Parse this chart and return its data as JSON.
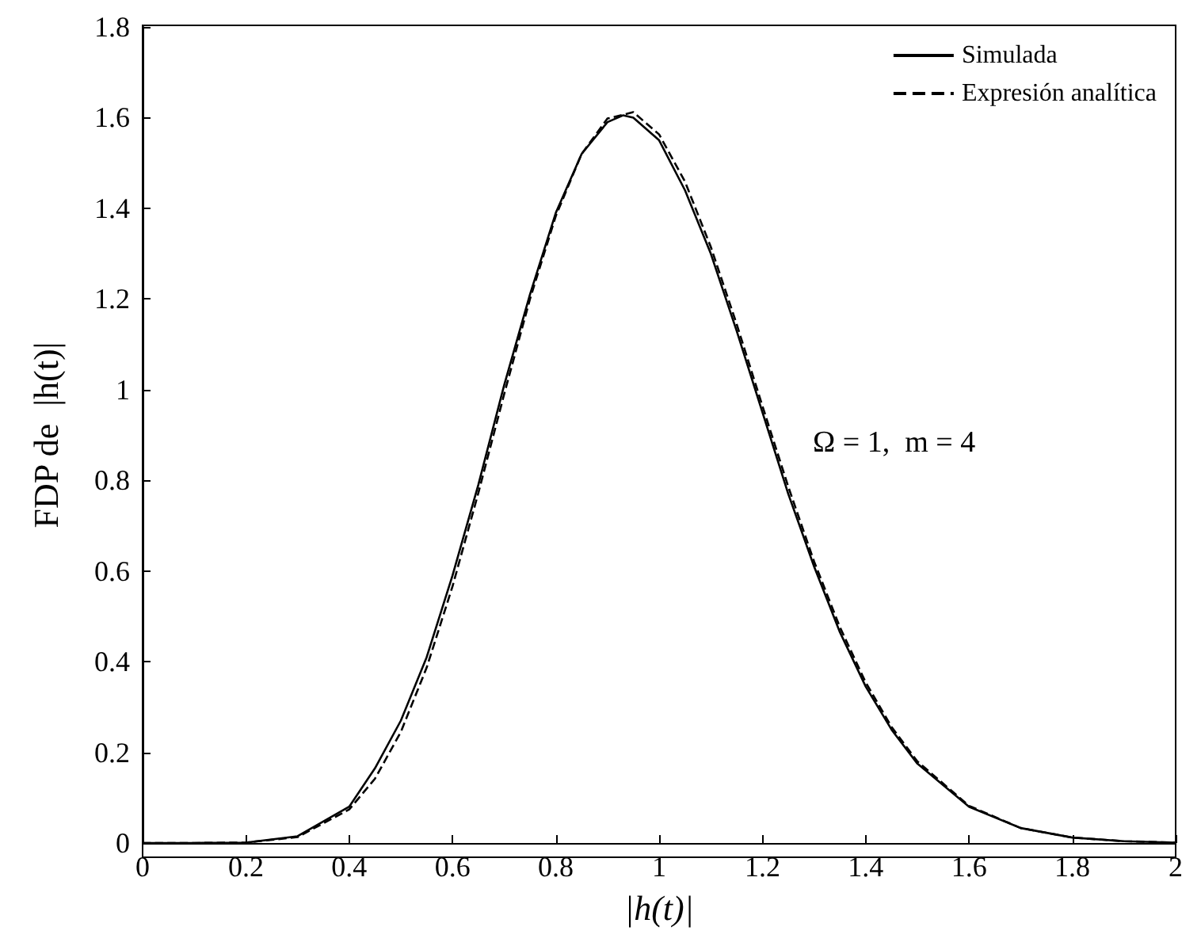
{
  "chart_data": {
    "type": "line",
    "xlabel": "|h(t)|",
    "ylabel": "FDP de  |h(t)|",
    "annotations": [
      "Ω = 1,  m = 4"
    ],
    "xlim": [
      0,
      2
    ],
    "xticks": [
      0,
      0.2,
      0.4,
      0.6,
      0.8,
      1,
      1.2,
      1.4,
      1.6,
      1.8,
      2
    ],
    "ylim": [
      0,
      1.8
    ],
    "yticks": [
      0,
      0.2,
      0.4,
      0.6,
      0.8,
      1,
      1.2,
      1.4,
      1.6,
      1.8
    ],
    "grid": false,
    "legend": "top right",
    "marker": "none",
    "series": [
      {
        "name": "Simulada",
        "color": "#000000",
        "line_style": "solid",
        "x": [
          0,
          0.1,
          0.2,
          0.3,
          0.4,
          0.45,
          0.5,
          0.55,
          0.6,
          0.65,
          0.7,
          0.75,
          0.8,
          0.85,
          0.9,
          0.93,
          0.95,
          1,
          1.05,
          1.1,
          1.15,
          1.2,
          1.25,
          1.3,
          1.35,
          1.4,
          1.45,
          1.5,
          1.6,
          1.7,
          1.8,
          1.9,
          2
        ],
        "values": [
          0,
          0,
          0.001,
          0.015,
          0.08,
          0.165,
          0.27,
          0.41,
          0.59,
          0.79,
          1.01,
          1.21,
          1.39,
          1.52,
          1.59,
          1.605,
          1.6,
          1.55,
          1.44,
          1.3,
          1.13,
          0.95,
          0.77,
          0.61,
          0.465,
          0.345,
          0.25,
          0.175,
          0.08,
          0.033,
          0.012,
          0.004,
          0.001
        ]
      },
      {
        "name": "Expresión analítica",
        "color": "#000000",
        "line_style": "dashed",
        "x": [
          0,
          0.1,
          0.2,
          0.3,
          0.4,
          0.45,
          0.5,
          0.55,
          0.6,
          0.65,
          0.7,
          0.75,
          0.8,
          0.85,
          0.9,
          0.95,
          1,
          1.05,
          1.1,
          1.15,
          1.2,
          1.25,
          1.3,
          1.35,
          1.4,
          1.45,
          1.5,
          1.6,
          1.7,
          1.8,
          1.9,
          2
        ],
        "values": [
          0,
          0,
          0.001,
          0.013,
          0.074,
          0.142,
          0.245,
          0.387,
          0.566,
          0.772,
          0.99,
          1.2,
          1.383,
          1.52,
          1.598,
          1.612,
          1.563,
          1.459,
          1.315,
          1.145,
          0.964,
          0.786,
          0.621,
          0.476,
          0.354,
          0.256,
          0.18,
          0.082,
          0.033,
          0.012,
          0.004,
          0.001
        ]
      }
    ]
  }
}
